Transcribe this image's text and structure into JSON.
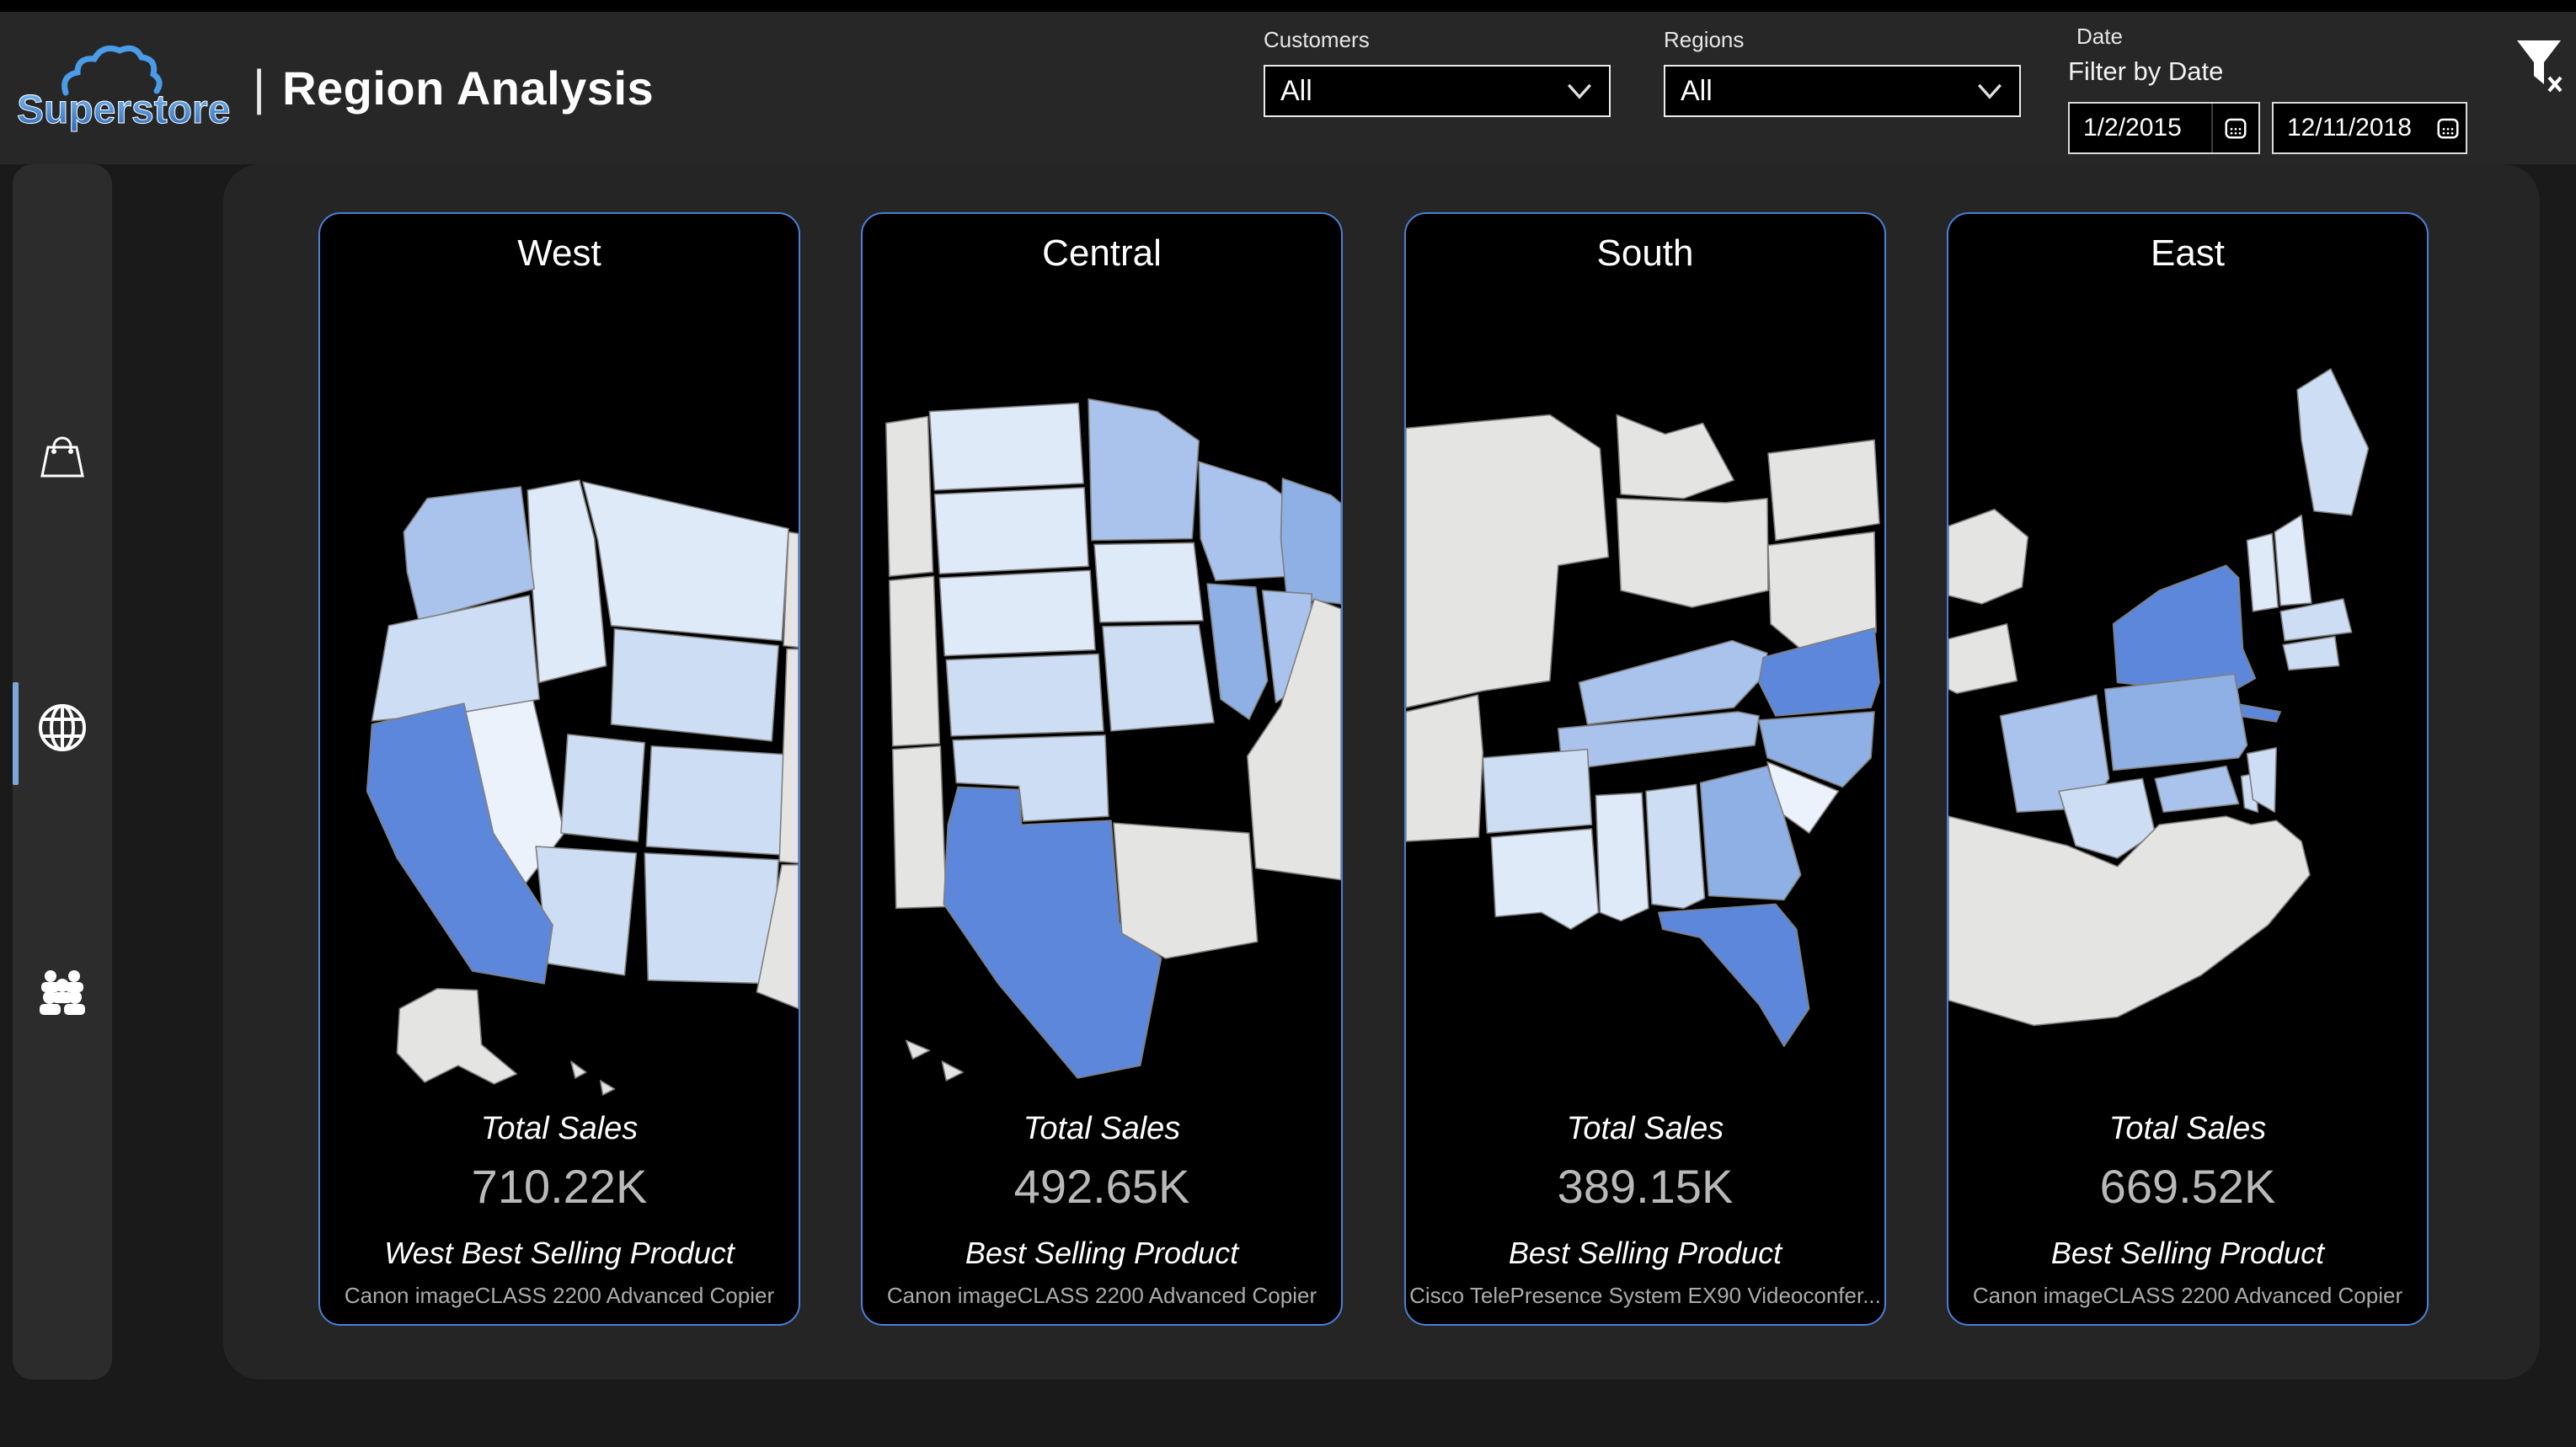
{
  "header": {
    "logo_text": "Superstore",
    "separator": "|",
    "title": "Region Analysis",
    "filters": {
      "customers": {
        "label": "Customers",
        "value": "All"
      },
      "regions": {
        "label": "Regions",
        "value": "All"
      },
      "date": {
        "label": "Date",
        "sublabel": "Filter by Date",
        "start": "1/2/2015",
        "end": "12/11/2018"
      }
    }
  },
  "sidebar": {
    "items": [
      {
        "id": "products",
        "icon": "shopping-bag-icon",
        "selected": false
      },
      {
        "id": "regions",
        "icon": "globe-icon",
        "selected": true
      },
      {
        "id": "customers",
        "icon": "people-icon",
        "selected": false
      }
    ]
  },
  "cards": [
    {
      "region": "West",
      "total_label": "Total Sales",
      "total": "710.22K",
      "product_label": "West Best Selling Product",
      "product": "Canon imageCLASS 2200 Advanced Copier"
    },
    {
      "region": "Central",
      "total_label": "Total Sales",
      "total": "492.65K",
      "product_label": "Best Selling Product",
      "product": "Canon imageCLASS 2200 Advanced Copier"
    },
    {
      "region": "South",
      "total_label": "Total Sales",
      "total": "389.15K",
      "product_label": "Best Selling Product",
      "product": "Cisco TelePresence System EX90 Videoconfer..."
    },
    {
      "region": "East",
      "total_label": "Total Sales",
      "total": "669.52K",
      "product_label": "Best Selling Product",
      "product": "Canon imageCLASS 2200 Advanced Copier"
    }
  ],
  "chart_data": [
    {
      "type": "choropleth",
      "region": "West",
      "total_sales": "710.22K",
      "best_selling_product": "Canon imageCLASS 2200 Advanced Copier",
      "highest_sales_state": "California"
    },
    {
      "type": "choropleth",
      "region": "Central",
      "total_sales": "492.65K",
      "best_selling_product": "Canon imageCLASS 2200 Advanced Copier",
      "highest_sales_state": "Texas"
    },
    {
      "type": "choropleth",
      "region": "South",
      "total_sales": "389.15K",
      "best_selling_product": "Cisco TelePresence System EX90 Videoconfer...",
      "highest_sales_state": "Florida"
    },
    {
      "type": "choropleth",
      "region": "East",
      "total_sales": "669.52K",
      "best_selling_product": "Canon imageCLASS 2200 Advanced Copier",
      "highest_sales_state": "New York"
    }
  ],
  "colors": {
    "accent": "#4a80d9",
    "selection": "#7da7d9",
    "page_bg": "#1a1a1a",
    "header_bg": "#272727",
    "panel_bg": "#252525",
    "sidebar_bg": "#2d2c2c",
    "card_bg": "#000000",
    "logo_blue": "#4a9ce8",
    "map": {
      "strong": "#5d87da",
      "mid": "#8fb0e5",
      "midlight": "#a9c3ec",
      "light": "#cdddf4",
      "faint": "#dfeaf9",
      "faintest": "#ecf2fb",
      "gray": "#e4e4e3",
      "stroke": "#7f7f7f"
    }
  }
}
